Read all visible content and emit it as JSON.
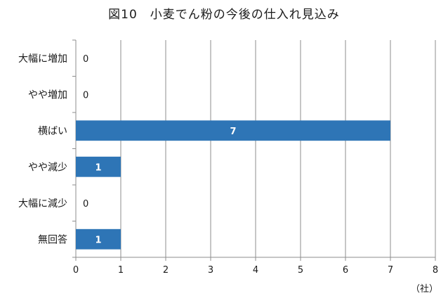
{
  "chart_data": {
    "type": "bar",
    "orientation": "horizontal",
    "title": "図10　小麦でん粉の今後の仕入れ見込み",
    "unit_label": "（社）",
    "categories": [
      "大幅に増加",
      "やや増加",
      "横ばい",
      "やや減少",
      "大幅に減少",
      "無回答"
    ],
    "values": [
      0,
      0,
      7,
      1,
      0,
      1
    ],
    "xlim": [
      0,
      8
    ],
    "xticks": [
      0,
      1,
      2,
      3,
      4,
      5,
      6,
      7,
      8
    ],
    "grid": "vertical",
    "legend": "none",
    "bar_color": "#2e75b6",
    "data_labels": true
  }
}
